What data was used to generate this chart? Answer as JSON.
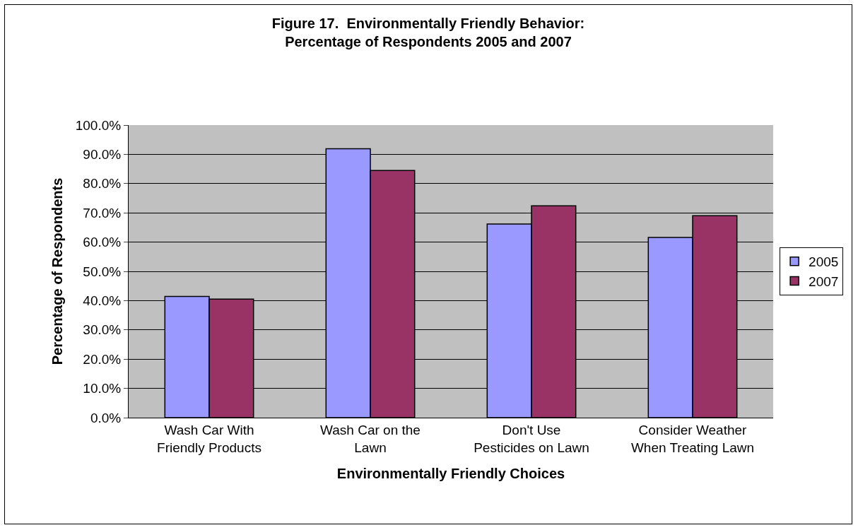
{
  "chart_data": {
    "type": "bar",
    "title": "Figure 17.  Environmentally Friendly Behavior:\nPercentage of Respondents 2005 and 2007",
    "xlabel": "Environmentally Friendly Choices",
    "ylabel": "Percentage of Respondents",
    "categories": [
      "Wash Car With Friendly Products",
      "Wash Car on the Lawn",
      "Don't Use Pesticides on Lawn",
      "Consider Weather When Treating Lawn"
    ],
    "series": [
      {
        "name": "2005",
        "color": "#9999ff",
        "values": [
          41.4,
          91.9,
          66.2,
          61.6
        ]
      },
      {
        "name": "2007",
        "color": "#993366",
        "values": [
          40.5,
          84.5,
          72.4,
          69.0
        ]
      }
    ],
    "ylim": [
      0,
      100
    ],
    "yticks": [
      {
        "value": 0,
        "label": "0.0%"
      },
      {
        "value": 10,
        "label": "10.0%"
      },
      {
        "value": 20,
        "label": "20.0%"
      },
      {
        "value": 30,
        "label": "30.0%"
      },
      {
        "value": 40,
        "label": "40.0%"
      },
      {
        "value": 50,
        "label": "50.0%"
      },
      {
        "value": 60,
        "label": "60.0%"
      },
      {
        "value": 70,
        "label": "70.0%"
      },
      {
        "value": 80,
        "label": "80.0%"
      },
      {
        "value": 90,
        "label": "90.0%"
      },
      {
        "value": 100,
        "label": "100.0%"
      }
    ],
    "grid": "y",
    "legend": "right"
  }
}
